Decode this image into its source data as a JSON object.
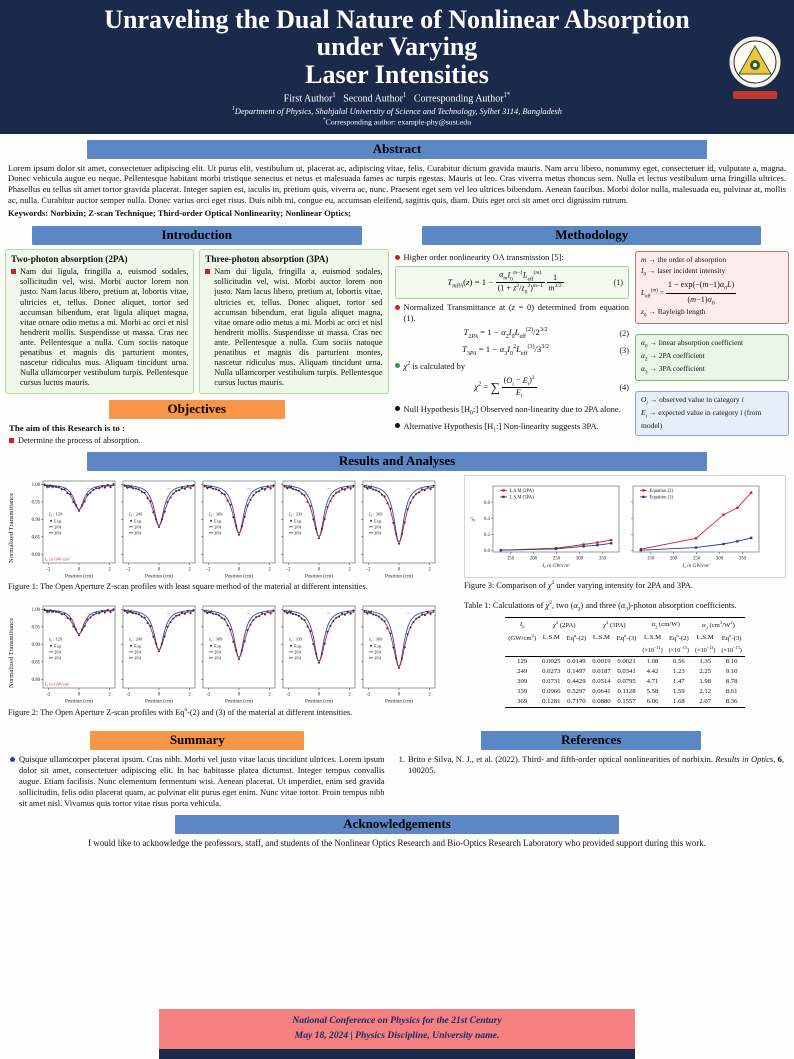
{
  "header": {
    "title_line1": "Unraveling the Dual Nature of Nonlinear Absorption under Varying",
    "title_line2": "Laser Intensities",
    "authors_html": "First Author<sup>1</sup> &nbsp; Second Author<sup>1</sup> &nbsp; Corresponding Author<sup>1*</sup>",
    "affil_html": "<sup>1</sup>Department of Physics, Shahjalal University of Science and Technology, Sylhet 3114, Bangladesh",
    "email_html": "<sup>*</sup>Corresponding author: example-phy@sust.edu"
  },
  "abstract": {
    "heading": "Abstract",
    "body": "Lorem ipsum dolor sit amet, consectetuer adipiscing elit. Ut purus elit, vestibulum ut, placerat ac, adipiscing vitae, felis. Curabitur dictum gravida mauris. Nam arcu libero, nonummy eget, consectetuer id, vulputate a, magna. Donec vehicula augue eu neque. Pellentesque habitant morbi tristique senectus et netus et malesuada fames ac turpis egestas. Mauris ut leo. Cras viverra metus rhoncus sem. Nulla et lectus vestibulum urna fringilla ultrices. Phasellus eu tellus sit amet tortor gravida placerat. Integer sapien est, iaculis in, pretium quis, viverra ac, nunc. Praesent eget sem vel leo ultrices bibendum. Aenean faucibus. Morbi dolor nulla, malesuada eu, pulvinar at, mollis ac, nulla. Curabitur auctor semper nulla. Donec varius orci eget risus. Duis nibh mi, congue eu, accumsan eleifend, sagittis quis, diam. Duis eget orci sit amet orci dignissim rutrum.",
    "keywords": "Keywords: Norbixin; Z-scan Technique; Third-order Optical Nonlinearity; Nonlinear Optics;"
  },
  "introduction": {
    "heading": "Introduction",
    "columns": [
      {
        "title": "Two-photon absorption (2PA)",
        "text": "Nam dui ligula, fringilla a, euismod sodales, sollicitudin vel, wisi. Morbi auctor lorem non justo. Nam lacus libero, pretium at, lobortis vitae, ultricies et, tellus. Donec aliquet, tortor sed accumsan bibendum, erat ligula aliquet magna, vitae ornare odio metus a mi. Morbi ac orci et nisl hendrerit mollis. Suspendisse ut massa. Cras nec ante. Pellentesque a nulla. Cum sociis natoque penatibus et magnis dis parturient montes, nascetur ridiculus mus. Aliquam tincidunt urna. Nulla ullamcorper vestibulum turpis. Pellentesque cursus luctus mauris."
      },
      {
        "title": "Three-photon absorption (3PA)",
        "text": "Nam dui ligula, fringilla a, euismod sodales, sollicitudin vel, wisi. Morbi auctor lorem non justo. Nam lacus libero, pretium at, lobortis vitae, ultricies et, tellus. Donec aliquet, tortor sed accumsan bibendum, erat ligula aliquet magna, vitae ornare odio metus a mi. Morbi ac orci et nisl hendrerit mollis. Suspendisse ut massa. Cras nec ante. Pellentesque a nulla. Cum sociis natoque penatibus et magnis dis parturient montes, nascetur ridiculus mus. Aliquam tincidunt urna. Nulla ullamcorper vestibulum turpis. Pellentesque cursus luctus mauris."
      }
    ]
  },
  "objectives": {
    "heading": "Objectives",
    "intro": "The aim of this Research is to :",
    "items": [
      "Determine the process of absorption."
    ]
  },
  "methodology": {
    "heading": "Methodology",
    "b1": "Higher order nonlinearity OA transmission [5]:",
    "b2": "Normalized Transmittance at (<i>z</i> = 0) determined from equation (1).",
    "b3": "<i>&chi;</i><sup>2</sup> is calculated by",
    "b4": "Null Hypothesis [H<sub>0</sub>:] Observed non-linearity due to 2PA alone.",
    "b5": "Alternative Hypothesis [H<sub>1</sub>:] Non-linearity suggests 3PA.",
    "eq1": "<i>T</i><sub><i>mPA</i></sub>(<i>z</i>) = 1 − <span class='frac'><span class='num'><i>α<sub>m</sub></i><i>I</i><sub>0</sub><sup><i>m</i>−1</sup><i>L</i><sub>eff</sub><sup>(<i>m</i>)</sup></span><span class='den'>(1 + <i>z</i><sup>2</sup>/<i>z</i><sub>0</sub><sup>2</sup>)<sup><i>m</i>−1</sup></span></span>&thinsp;<span class='frac'><span class='num'>1</span><span class='den'><i>m</i><sup>3/2</sup></span></span>",
    "eq1_num": "(1)",
    "eq2": "<i>T</i><sub>2<i>PA</i></sub> = 1 − <i>α</i><sub>2</sub><i>I</i><sub>0</sub><i>L</i><sub>eff</sub><sup>(2)</sup>/2<sup>3/2</sup>",
    "eq2_num": "(2)",
    "eq3": "<i>T</i><sub>3<i>PA</i></sub> = 1 − <i>α</i><sub>3</sub><i>I</i><sub>0</sub><sup>2</sup><i>L</i><sub>eff</sub><sup>(3)</sup>/3<sup>3/2</sup>",
    "eq3_num": "(3)",
    "eq4": "<i>χ</i><sup>2</sup> = <span class='bigsum'>∑</span>&thinsp;<span class='frac'><span class='num'>(<i>O<sub>i</sub></i> − <i>E<sub>i</sub></i>)<sup>2</sup></span><span class='den'><i>E<sub>i</sub></i></span></span>",
    "eq4_num": "(4)",
    "m_box": [
      "<i>m</i> → the order of absorption",
      "<i>I</i><sub>0</sub> → laser incident intensity",
      "<i>L</i><sub>eff</sub><sup>(<i>m</i>)</sup> = <span class='frac'><span class='num'>1 − exp(−(<i>m</i>−1)<i>α</i><sub>0</sub><i>L</i>)</span><span class='den'>(<i>m</i>−1)<i>α</i><sub>0</sub></span></span>",
      "<i>z</i><sub>0</sub> → Rayleigh length"
    ],
    "alpha_box": [
      "<i>α</i><sub>0</sub> → linear absorption coefficient",
      "<i>α</i><sub>2</sub> → 2PA coefficient",
      "<i>α</i><sub>3</sub> → 3PA coefficient"
    ],
    "oe_box": [
      "<i>O<sub>i</sub></i> → observed value in category <i>i</i>",
      "<i>E<sub>i</sub></i> → expected value in category <i>i</i> (from model)"
    ]
  },
  "results": {
    "heading": "Results and Analyses",
    "fig1_caption": "Figure 1: The Open Aperture Z-scan profiles with least square method of the material at different intensities.",
    "fig2_caption": "Figure 2: The Open Aperture Z-scan profiles with Eq<sup>n</sup>-(2) and (3) of the material at different intensities.",
    "fig3_caption": "Figure 3: Comparison of <i>χ</i><sup>2</sup> under varying intensity for 2PA and 3PA."
  },
  "chart_data": [
    {
      "id": "fig1",
      "type": "line",
      "kind": "zscan",
      "title": "Open Aperture Z-scan profiles (least square method)",
      "ylabel": "Normalized Transmittance",
      "xlabel": "Position (cm)",
      "y_ticks": [
        "1.00",
        "0.95",
        "0.90",
        "0.85",
        "0.80"
      ],
      "x_ticks": [
        "-2",
        "0",
        "2"
      ],
      "x_range": [
        -2,
        2
      ],
      "y_range": [
        0.8,
        1.0
      ],
      "unit_note": "I₀ in GW/cm²",
      "legend": [
        "Exp.",
        "2PA",
        "3PA"
      ],
      "panels": [
        {
          "label": "(a)",
          "I0": "129",
          "dip": 0.072
        },
        {
          "label": "(b)",
          "I0": "249",
          "dip": 0.118
        },
        {
          "label": "(c)",
          "I0": "309",
          "dip": 0.14
        },
        {
          "label": "(d)",
          "I0": "339",
          "dip": 0.15
        },
        {
          "label": "(e)",
          "I0": "369",
          "dip": 0.166
        }
      ]
    },
    {
      "id": "fig2",
      "type": "line",
      "kind": "zscan",
      "title": "Open Aperture Z-scan profiles (Eqn-(2) and (3))",
      "ylabel": "Normalized Transmittance",
      "xlabel": "Position (cm)",
      "y_ticks": [
        "1.00",
        "0.95",
        "0.90",
        "0.85",
        "0.80"
      ],
      "x_ticks": [
        "-2",
        "0",
        "2"
      ],
      "x_range": [
        -2,
        2
      ],
      "y_range": [
        0.8,
        1.0
      ],
      "unit_note": "I₀ in GW/cm²",
      "legend": [
        "Exp.",
        "2PA",
        "3PA"
      ],
      "panels": [
        {
          "label": "(a)",
          "I0": "129",
          "dip": 0.07
        },
        {
          "label": "(b)",
          "I0": "249",
          "dip": 0.116
        },
        {
          "label": "(c)",
          "I0": "309",
          "dip": 0.138
        },
        {
          "label": "(d)",
          "I0": "339",
          "dip": 0.149
        },
        {
          "label": "(e)",
          "I0": "369",
          "dip": 0.164
        }
      ]
    },
    {
      "id": "fig3",
      "type": "line",
      "kind": "chi2",
      "title": "Comparison of chi-squared under varying intensity",
      "ylabel": "χ²",
      "xlabel": "I₀ in GW/cm²",
      "x": [
        129,
        249,
        309,
        339,
        369
      ],
      "x_ticks": [
        150,
        200,
        250,
        300,
        350
      ],
      "y_ticks": [
        "0.0",
        "0.2",
        "0.4",
        "0.6"
      ],
      "panels": [
        {
          "series": [
            {
              "name": "L.S.M (2PA)",
              "color": "#cc2222",
              "values": [
                0.0025,
                0.0273,
                0.0731,
                0.0966,
                0.1281
              ]
            },
            {
              "name": "L.S.M (3PA)",
              "color": "#27408b",
              "values": [
                0.0019,
                0.0187,
                0.0514,
                0.0641,
                0.088
              ]
            }
          ]
        },
        {
          "series": [
            {
              "name": "Equation (2)",
              "color": "#cc2222",
              "values": [
                0.0149,
                0.1497,
                0.4429,
                0.5297,
                0.717
              ]
            },
            {
              "name": "Equation (3)",
              "color": "#27408b",
              "values": [
                0.0021,
                0.0341,
                0.0795,
                0.1128,
                0.1557
              ]
            }
          ]
        }
      ]
    }
  ],
  "table1": {
    "title_html": "Table 1: Calculations of <i>χ</i><sup>2</sup>, two (<i>α</i><sub>2</sub>) and three (<i>α</i><sub>3</sub>)-photon absorption coefficients.",
    "header_row1": [
      {
        "label": "<i>I</i><sub>0</sub>",
        "span": 1
      },
      {
        "label": "<i>χ</i><sup>2</sup> (2PA)",
        "span": 2
      },
      {
        "label": "<i>χ</i><sup>2</sup> (3PA)",
        "span": 2
      },
      {
        "label": "<i>α</i><sub>2</sub> (cm/W)",
        "span": 2
      },
      {
        "label": "<i>α</i><sub>3</sub> (cm<sup>3</sup>/W<sup>2</sup>)",
        "span": 2
      }
    ],
    "header_row2": [
      "(GW/cm<sup>2</sup>)",
      "L.S.M",
      "Eq<sup>n</sup>-(2)",
      "L.S.M",
      "Eq<sup>n</sup>-(3)",
      "L.S.M",
      "Eq<sup>n</sup>-(2)",
      "L.S.M",
      "Eq<sup>n</sup>-(3)"
    ],
    "header_row3": [
      "",
      "",
      "",
      "",
      "",
      "(×10<sup>−11</sup>)",
      "(×10<sup>−13</sup>)",
      "(×10<sup>−13</sup>)",
      "(×10<sup>−13</sup>)"
    ],
    "rows": [
      [
        "129",
        "0.0025",
        "0.0149",
        "0.0019",
        "0.0021",
        "1.08",
        "0.56",
        "1.35",
        "8.10"
      ],
      [
        "249",
        "0.0273",
        "0.1497",
        "0.0187",
        "0.0341",
        "4.42",
        "1.23",
        "2.25",
        "9.10"
      ],
      [
        "309",
        "0.0731",
        "0.4429",
        "0.0514",
        "0.0795",
        "4.71",
        "1.47",
        "1.98",
        "8.78"
      ],
      [
        "339",
        "0.0966",
        "0.5297",
        "0.0641",
        "0.1128",
        "5.58",
        "1.59",
        "2.12",
        "8.61"
      ],
      [
        "369",
        "0.1281",
        "0.7170",
        "0.0880",
        "0.1557",
        "6.06",
        "1.68",
        "2.07",
        "8.36"
      ]
    ]
  },
  "summary": {
    "heading": "Summary",
    "text": "Quisque ullamcorper placerat ipsum. Cras nibh. Morbi vel justo vitae lacus tincidunt ultrices. Lorem ipsum dolor sit amet, consectetuer adipiscing elit. In hac habitasse platea dictumst. Integer tempus convallis augue. Etiam facilisis. Nunc elementum fermentum wisi. Aenean placerat. Ut imperdiet, enim sed gravida sollicitudin, felis odio placerat quam, ac pulvinar elit purus eget enim. Nunc vitae tortor. Proin tempus nibh sit amet nisl. Vivamus quis tortor vitae risus porta vehicula."
  },
  "references": {
    "heading": "References",
    "items": [
      {
        "num": "1.",
        "html": "Brito e Silva, N. J., et al. (2022). Third- and fifth-order optical nonlinearities of norbixin. <i>Results in Optics</i>, <b>6</b>, 100205."
      }
    ]
  },
  "acknowledgements": {
    "heading": "Acknowledgements",
    "text": "I would like to acknowledge the professors, staff, and students of the Nonlinear Optics Research and Bio-Optics Research Laboratory who provided support during this work."
  },
  "footer": {
    "line1": "National Conference on Physics for the 21st Century",
    "line2": "May 18, 2024  |  Physics Discipline, University name."
  },
  "colors": {
    "header_bg": "#1b2a4a",
    "section_bar_blue": "#5b87c5",
    "section_bar_orange": "#f79646",
    "footer_pink": "#f48080",
    "accent_red": "#cc2222",
    "accent_blue": "#27408b"
  }
}
